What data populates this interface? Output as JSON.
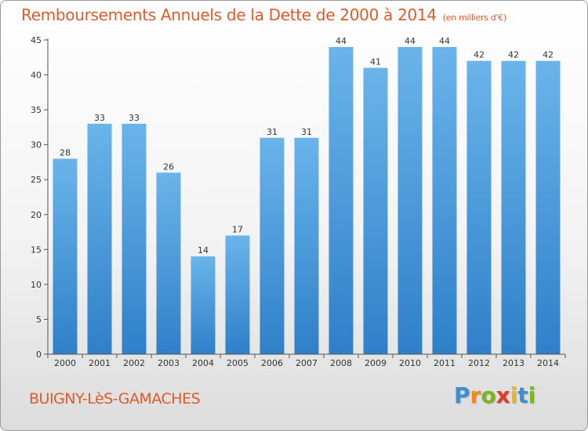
{
  "header": {
    "title": "Remboursements Annuels de la Dette de 2000 à 2014",
    "subtitle": "(en milliers d'€)"
  },
  "footer": {
    "city": "BUIGNY-LèS-GAMACHES",
    "logo_letters": [
      "P",
      "r",
      "o",
      "x",
      "i",
      "t",
      "i"
    ],
    "logo_colors": [
      "#3a8fd6",
      "#f08a1c",
      "#7ab51d",
      "#e03a2a",
      "#f2b21a",
      "#3a8fd6",
      "#7ab51d"
    ]
  },
  "colors": {
    "bar_top": "#6ab4ea",
    "bar_bottom": "#2f80c9",
    "axis": "#555555",
    "grid": "#bbbbbb"
  },
  "chart_data": {
    "type": "bar",
    "title": "Remboursements Annuels de la Dette de 2000 à 2014",
    "subtitle": "(en milliers d'€)",
    "xlabel": "",
    "ylabel": "",
    "categories": [
      "2000",
      "2001",
      "2002",
      "2003",
      "2004",
      "2005",
      "2006",
      "2007",
      "2008",
      "2009",
      "2010",
      "2011",
      "2012",
      "2013",
      "2014"
    ],
    "values": [
      28,
      33,
      33,
      26,
      14,
      17,
      31,
      31,
      44,
      41,
      44,
      44,
      42,
      42,
      42
    ],
    "ylim": [
      0,
      45
    ],
    "yticks": [
      0,
      5,
      10,
      15,
      20,
      25,
      30,
      35,
      40,
      45
    ],
    "grid": false,
    "legend": "none"
  }
}
